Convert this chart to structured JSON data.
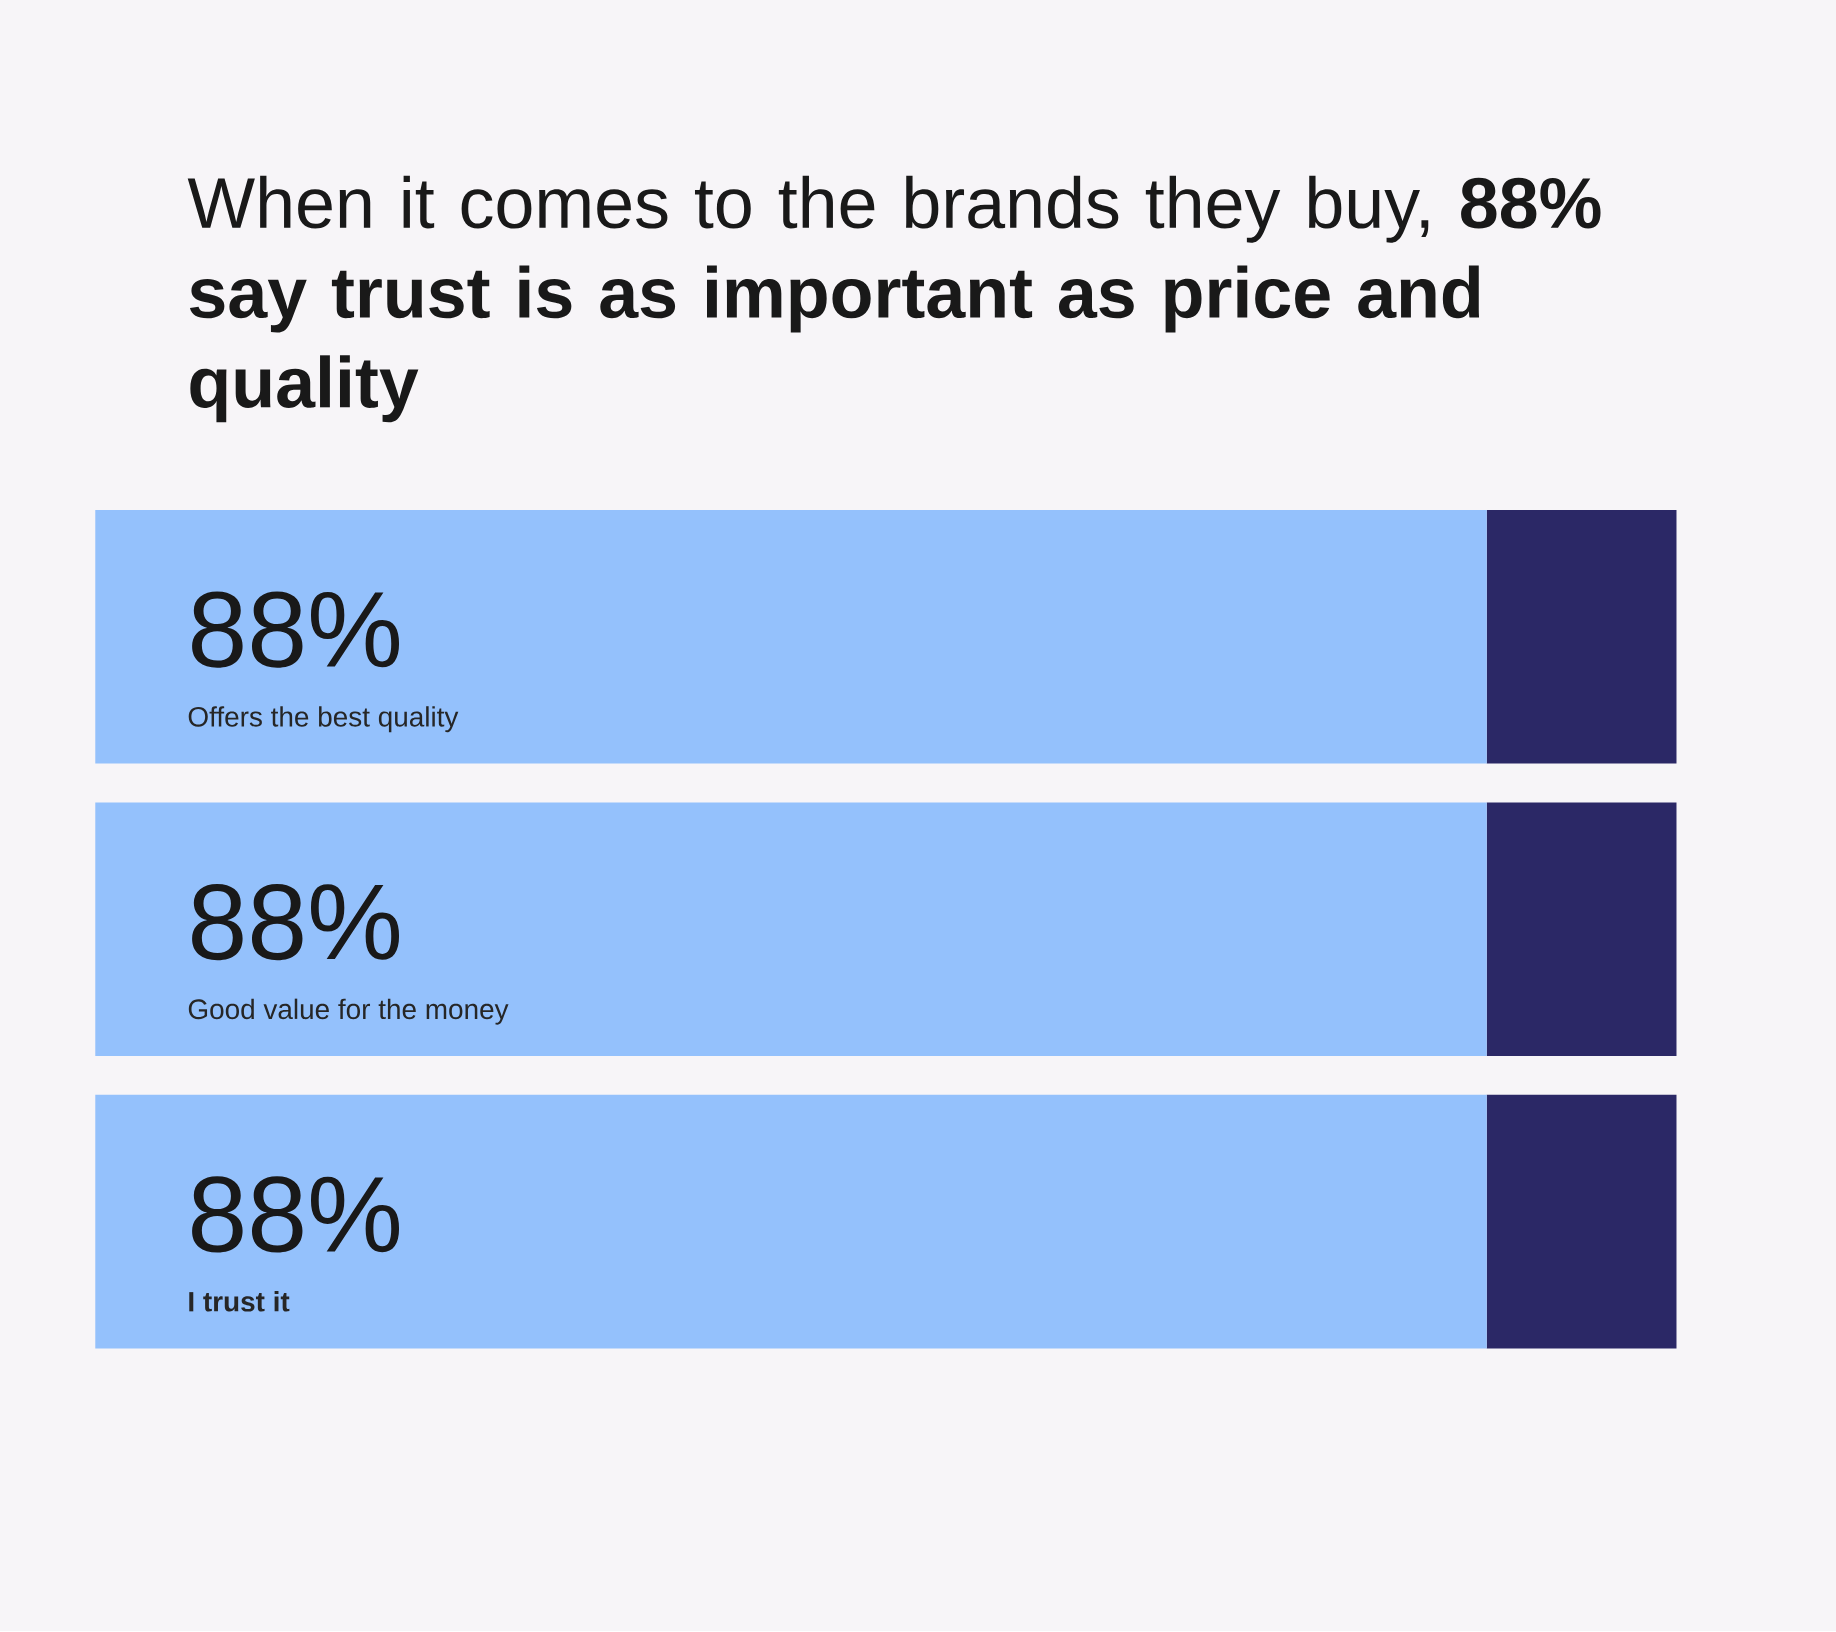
{
  "chart_data": {
    "type": "bar",
    "orientation": "horizontal",
    "stacked": true,
    "title": "When it comes to the brands they buy, **88% say trust is as important as price and quality**",
    "categories": [
      "Offers the best quality",
      "Good value for the money",
      "**I trust it**"
    ],
    "series": [
      {
        "color": "#94c1fc",
        "values": [
          88,
          88,
          88
        ],
        "value_labels": [
          "88%",
          "88%",
          "88%"
        ]
      },
      {
        "color": "#2b2866",
        "values": [
          12,
          12,
          12
        ]
      }
    ]
  }
}
